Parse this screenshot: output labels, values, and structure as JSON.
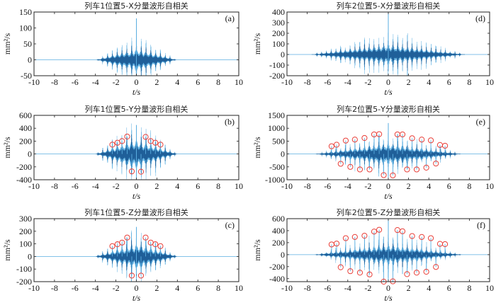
{
  "figure": {
    "description": "Autocorrelation of waveform components at position 5 for train 1 and train 2"
  },
  "chart_data": [
    {
      "id": "a",
      "type": "line",
      "title": "列车1位置5-X分量波形自相关",
      "panel_label": "(a)",
      "xlabel": "t/s",
      "ylabel": "mm²/s",
      "xlim": [
        -10,
        10
      ],
      "ylim": [
        -50,
        150
      ],
      "xticks": [
        -10,
        -8,
        -6,
        -4,
        -2,
        0,
        2,
        4,
        6,
        8,
        10
      ],
      "yticks": [
        -50,
        0,
        50,
        100,
        150
      ],
      "signal": {
        "extent_s": 3.9,
        "envelope_peak": 25,
        "central_peak": 130,
        "central_trough": -45,
        "period_s": 0.47
      },
      "markers_upper": [],
      "markers_lower": []
    },
    {
      "id": "b",
      "type": "line",
      "title": "列车1位置5-Y分量波形自相关",
      "panel_label": "(b)",
      "xlabel": "t/s",
      "ylabel": "mm²/s",
      "xlim": [
        -10,
        10
      ],
      "ylim": [
        -400,
        600
      ],
      "xticks": [
        -10,
        -8,
        -6,
        -4,
        -2,
        0,
        2,
        4,
        6,
        8,
        10
      ],
      "yticks": [
        -400,
        -200,
        0,
        200,
        400,
        600
      ],
      "signal": {
        "extent_s": 4.0,
        "envelope_peak": 150,
        "central_peak": 450,
        "central_trough": -380,
        "period_s": 0.47
      },
      "markers_upper": [
        {
          "t": -2.35,
          "v": 145
        },
        {
          "t": -1.85,
          "v": 175
        },
        {
          "t": -1.4,
          "v": 200
        },
        {
          "t": -0.9,
          "v": 270
        },
        {
          "t": 0.9,
          "v": 265
        },
        {
          "t": 1.4,
          "v": 200
        },
        {
          "t": 1.85,
          "v": 175
        },
        {
          "t": 2.35,
          "v": 145
        }
      ],
      "markers_lower": [
        {
          "t": -0.45,
          "v": -270
        },
        {
          "t": 0.45,
          "v": -275
        }
      ]
    },
    {
      "id": "c",
      "type": "line",
      "title": "列车1位置5-Z分量波形自相关",
      "panel_label": "(c)",
      "xlabel": "t/s",
      "ylabel": "mm²/s",
      "xlim": [
        -10,
        10
      ],
      "ylim": [
        -200,
        300
      ],
      "xticks": [
        -10,
        -8,
        -6,
        -4,
        -2,
        0,
        2,
        4,
        6,
        8,
        10
      ],
      "yticks": [
        -200,
        -100,
        0,
        100,
        200,
        300
      ],
      "signal": {
        "extent_s": 4.0,
        "envelope_peak": 70,
        "central_peak": 235,
        "central_trough": -140,
        "period_s": 0.47
      },
      "markers_upper": [
        {
          "t": -2.35,
          "v": 82
        },
        {
          "t": -1.85,
          "v": 97
        },
        {
          "t": -1.4,
          "v": 110
        },
        {
          "t": -0.9,
          "v": 150
        },
        {
          "t": 0.9,
          "v": 150
        },
        {
          "t": 1.4,
          "v": 110
        },
        {
          "t": 1.85,
          "v": 97
        },
        {
          "t": 2.35,
          "v": 82
        }
      ],
      "markers_lower": [
        {
          "t": -0.45,
          "v": -152
        },
        {
          "t": 0.45,
          "v": -152
        }
      ]
    },
    {
      "id": "d",
      "type": "line",
      "title": "列车2位置5-X分量波形自相关",
      "panel_label": "(d)",
      "xlabel": "t/s",
      "ylabel": "mm²/s",
      "xlim": [
        -10,
        10
      ],
      "ylim": [
        -200,
        400
      ],
      "xticks": [
        -10,
        -8,
        -6,
        -4,
        -2,
        0,
        2,
        4,
        6,
        8,
        10
      ],
      "yticks": [
        -200,
        -100,
        0,
        100,
        200,
        300,
        400
      ],
      "signal": {
        "extent_s": 7.6,
        "envelope_peak": 70,
        "central_peak": 400,
        "central_trough": -140,
        "period_s": 0.47
      },
      "markers_upper": [],
      "markers_lower": []
    },
    {
      "id": "e",
      "type": "line",
      "title": "列车2位置5-Y分量波形自相关",
      "panel_label": "(e)",
      "xlabel": "t/s",
      "ylabel": "mm²/s",
      "xlim": [
        -10,
        10
      ],
      "ylim": [
        -1000,
        1500
      ],
      "xticks": [
        -10,
        -8,
        -6,
        -4,
        -2,
        0,
        2,
        4,
        6,
        8,
        10
      ],
      "yticks": [
        -1000,
        -500,
        0,
        500,
        1000,
        1500
      ],
      "signal": {
        "extent_s": 7.2,
        "envelope_peak": 300,
        "central_peak": 1200,
        "central_trough": -900,
        "period_s": 0.47
      },
      "markers_upper": [
        {
          "t": -5.6,
          "v": 300
        },
        {
          "t": -5.1,
          "v": 360
        },
        {
          "t": -4.2,
          "v": 520
        },
        {
          "t": -3.3,
          "v": 560
        },
        {
          "t": -2.35,
          "v": 620
        },
        {
          "t": -1.4,
          "v": 760
        },
        {
          "t": -0.9,
          "v": 770
        },
        {
          "t": 0.9,
          "v": 760
        },
        {
          "t": 1.4,
          "v": 760
        },
        {
          "t": 2.35,
          "v": 610
        },
        {
          "t": 3.3,
          "v": 560
        },
        {
          "t": 4.2,
          "v": 530
        },
        {
          "t": 5.1,
          "v": 350
        },
        {
          "t": 5.6,
          "v": 320
        }
      ],
      "markers_lower": [
        {
          "t": -4.7,
          "v": -380
        },
        {
          "t": -3.75,
          "v": -500
        },
        {
          "t": -2.8,
          "v": -600
        },
        {
          "t": -1.85,
          "v": -600
        },
        {
          "t": -0.45,
          "v": -820
        },
        {
          "t": 0.45,
          "v": -830
        },
        {
          "t": 1.85,
          "v": -600
        },
        {
          "t": 2.8,
          "v": -600
        },
        {
          "t": 3.75,
          "v": -530
        },
        {
          "t": 4.7,
          "v": -370
        }
      ]
    },
    {
      "id": "f",
      "type": "line",
      "title": "列车2位置5-Z分量波形自相关",
      "panel_label": "(f)",
      "xlabel": "t/s",
      "ylabel": "mm²/s",
      "xlim": [
        -10,
        10
      ],
      "ylim": [
        -450,
        600
      ],
      "xticks": [
        -10,
        -8,
        -6,
        -4,
        -2,
        0,
        2,
        4,
        6,
        8,
        10
      ],
      "yticks": [
        -400,
        -200,
        0,
        200,
        400,
        600
      ],
      "signal": {
        "extent_s": 7.3,
        "envelope_peak": 120,
        "central_peak": 600,
        "central_trough": -450,
        "period_s": 0.47
      },
      "markers_upper": [
        {
          "t": -5.6,
          "v": 170
        },
        {
          "t": -5.1,
          "v": 185
        },
        {
          "t": -4.2,
          "v": 275
        },
        {
          "t": -3.3,
          "v": 295
        },
        {
          "t": -2.35,
          "v": 315
        },
        {
          "t": -1.4,
          "v": 385
        },
        {
          "t": -0.9,
          "v": 415
        },
        {
          "t": 0.9,
          "v": 410
        },
        {
          "t": 1.4,
          "v": 390
        },
        {
          "t": 2.35,
          "v": 310
        },
        {
          "t": 3.3,
          "v": 295
        },
        {
          "t": 4.2,
          "v": 275
        },
        {
          "t": 5.1,
          "v": 180
        },
        {
          "t": 5.6,
          "v": 175
        }
      ],
      "markers_lower": [
        {
          "t": -4.7,
          "v": -210
        },
        {
          "t": -3.75,
          "v": -275
        },
        {
          "t": -2.8,
          "v": -300
        },
        {
          "t": -1.85,
          "v": -330
        },
        {
          "t": -0.45,
          "v": -450
        },
        {
          "t": 0.45,
          "v": -445
        },
        {
          "t": 1.85,
          "v": -325
        },
        {
          "t": 2.8,
          "v": -300
        },
        {
          "t": 3.75,
          "v": -285
        },
        {
          "t": 4.7,
          "v": -205
        }
      ]
    }
  ],
  "colors": {
    "waveform_dark": "#1f5f99",
    "waveform_light": "#5aaee0",
    "marker": "#e8403a",
    "axis": "#222222"
  }
}
